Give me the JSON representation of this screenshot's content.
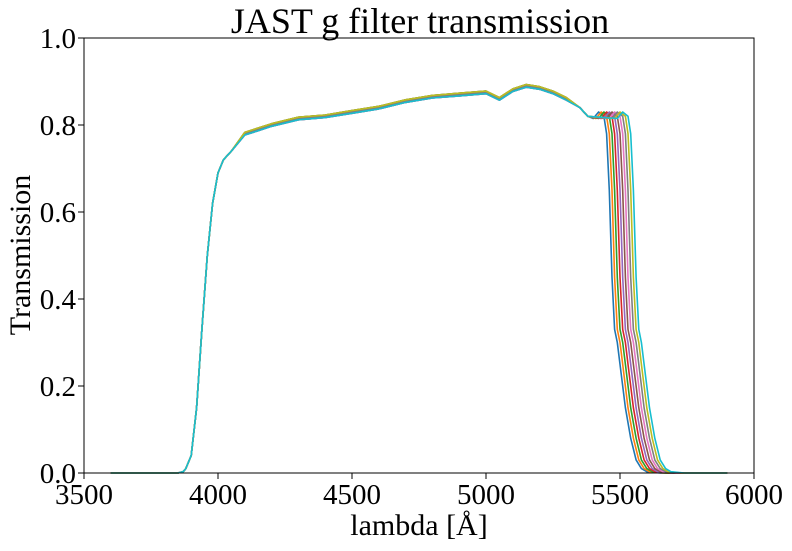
{
  "chart_data": {
    "type": "line",
    "title": "JAST g filter transmission",
    "xlabel": "lambda [Å]",
    "ylabel": "Transmission",
    "xlim": [
      3500,
      6000
    ],
    "ylim": [
      0.0,
      1.0
    ],
    "xticks": [
      "3500",
      "4000",
      "4500",
      "5000",
      "5500",
      "6000"
    ],
    "yticks": [
      "0.0",
      "0.2",
      "0.4",
      "0.6",
      "0.8",
      "1.0"
    ],
    "grid": false,
    "legend": "none",
    "series_count": 10,
    "series_colors": [
      "#1f77b4",
      "#ff7f0e",
      "#2ca02c",
      "#d62728",
      "#9467bd",
      "#8c564b",
      "#e377c2",
      "#7f7f7f",
      "#bcbd22",
      "#17becf"
    ],
    "red_edge_shift": [
      0,
      10,
      20,
      30,
      40,
      50,
      60,
      70,
      80,
      90
    ],
    "x": [
      3600,
      3850,
      3870,
      3880,
      3900,
      3920,
      3940,
      3960,
      3980,
      4000,
      4020,
      4050,
      4100,
      4150,
      4200,
      4300,
      4400,
      4500,
      4600,
      4700,
      4800,
      4900,
      5000,
      5050,
      5100,
      5150,
      5200,
      5250,
      5300,
      5350,
      5380,
      5400,
      5420,
      5440,
      5450,
      5460,
      5470,
      5480,
      5490,
      5500,
      5520,
      5540,
      5560,
      5580,
      5600,
      5650,
      5700,
      5900
    ],
    "values": [
      0.0,
      0.0,
      0.003,
      0.01,
      0.04,
      0.15,
      0.33,
      0.5,
      0.62,
      0.69,
      0.72,
      0.74,
      0.78,
      0.79,
      0.8,
      0.815,
      0.82,
      0.83,
      0.84,
      0.855,
      0.865,
      0.87,
      0.875,
      0.86,
      0.88,
      0.89,
      0.885,
      0.875,
      0.86,
      0.84,
      0.82,
      0.815,
      0.83,
      0.82,
      0.78,
      0.65,
      0.45,
      0.33,
      0.3,
      0.25,
      0.15,
      0.08,
      0.03,
      0.01,
      0.003,
      0.0,
      0.0,
      0.0
    ]
  }
}
